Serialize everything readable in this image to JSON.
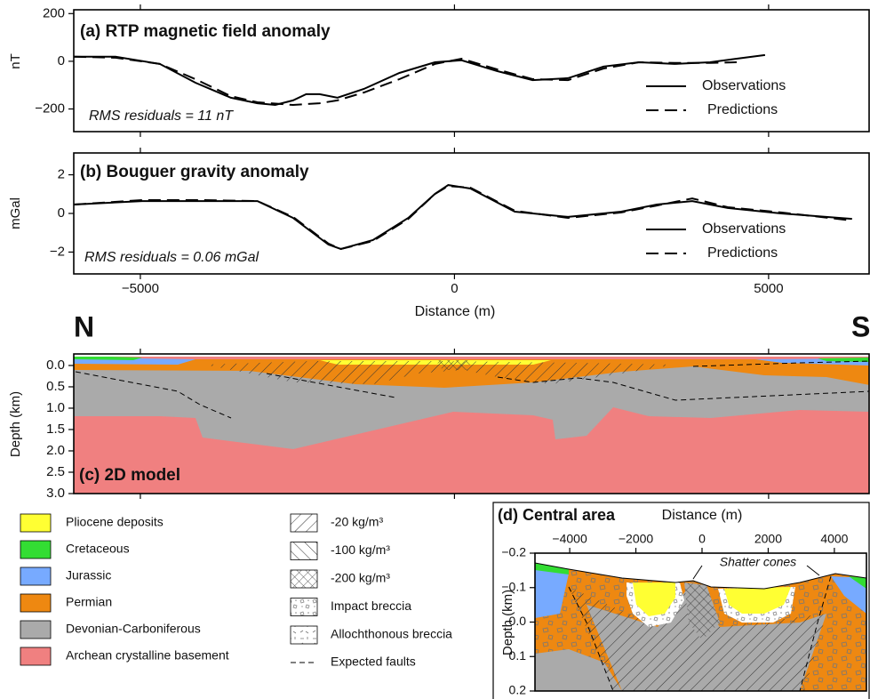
{
  "chart_data": [
    {
      "type": "line",
      "title": "(a) RTP magnetic field anomaly",
      "ylabel": "nT",
      "annotation": "RMS residuals = 11 nT",
      "xlim": [
        -6060,
        6600
      ],
      "ylim": [
        -295,
        216
      ],
      "yticks": [
        200,
        0,
        {
          "value": -200,
          "label": "−200"
        }
      ],
      "series": [
        {
          "name": "Observations",
          "color": "#000",
          "dashed": false,
          "x": [
            -6060,
            -5395,
            -4689,
            -4124,
            -3559,
            -3136,
            -2853,
            -2571,
            -2359,
            -2147,
            -1864,
            -1441,
            -876,
            -311,
            113,
            678,
            1243,
            1808,
            2373,
            2938,
            3503,
            4068,
            4492,
            4944
          ],
          "values": [
            19,
            19,
            -11,
            -90,
            -153,
            -176,
            -183,
            -164,
            -138,
            -138,
            -153,
            -116,
            -49,
            -4,
            4,
            -41,
            -79,
            -71,
            -22,
            -4,
            -11,
            -4,
            11,
            26
          ]
        },
        {
          "name": "Predictions",
          "color": "#000",
          "dashed": true,
          "x": [
            -6060,
            -5395,
            -4689,
            -4124,
            -3559,
            -3136,
            -2571,
            -2147,
            -1864,
            -1441,
            -876,
            -311,
            113,
            678,
            1243,
            1808,
            2373,
            2938,
            3503,
            4068,
            4492
          ],
          "values": [
            19,
            15,
            -11,
            -75,
            -146,
            -172,
            -183,
            -176,
            -164,
            -131,
            -75,
            -11,
            11,
            -34,
            -75,
            -79,
            -30,
            -4,
            -7,
            -7,
            -4
          ]
        }
      ]
    },
    {
      "type": "line",
      "title": "(b) Bouguer gravity anomaly",
      "ylabel": "mGal",
      "xlabel": "Distance (m)",
      "annotation": "RMS residuals = 0.06 mGal",
      "xlim": [
        -6060,
        6600
      ],
      "ylim": [
        -3.13,
        3.13
      ],
      "xticks": [
        {
          "value": -5000,
          "label": "−5000"
        },
        0,
        5000
      ],
      "yticks": [
        2,
        0,
        {
          "value": -2,
          "label": "−2"
        }
      ],
      "series": [
        {
          "name": "Observations",
          "color": "#000",
          "dashed": false,
          "x": [
            -6060,
            -4972,
            -3983,
            -3136,
            -2571,
            -2006,
            -1808,
            -1299,
            -734,
            -311,
            -99,
            254,
            960,
            1808,
            2655,
            3220,
            3785,
            4350,
            5198,
            6328
          ],
          "values": [
            0.46,
            0.64,
            0.64,
            0.64,
            -0.23,
            -1.61,
            -1.84,
            -1.38,
            -0.23,
            1.01,
            1.47,
            1.29,
            0.09,
            -0.18,
            0.09,
            0.46,
            0.64,
            0.28,
            0,
            -0.28
          ]
        },
        {
          "name": "Predictions",
          "color": "#000",
          "dashed": true,
          "x": [
            -6060,
            -4972,
            -3983,
            -3136,
            -2571,
            -2006,
            -1808,
            -1299,
            -734,
            -311,
            -99,
            254,
            960,
            1808,
            2655,
            3220,
            3785,
            4350,
            5198,
            6328
          ],
          "values": [
            0.46,
            0.69,
            0.69,
            0.64,
            -0.18,
            -1.56,
            -1.84,
            -1.43,
            -0.28,
            1.01,
            1.42,
            1.33,
            0.14,
            -0.23,
            0.05,
            0.41,
            0.78,
            0.32,
            0.05,
            -0.37
          ]
        }
      ]
    },
    {
      "type": "section",
      "title": "(c) 2D model",
      "ylabel": "Depth (km)",
      "left_label": "N",
      "right_label": "S",
      "xlim": [
        -6060,
        6600
      ],
      "ylim": [
        -0.27,
        3.0
      ],
      "y_inverted": true,
      "yticks": [
        {
          "value": 0,
          "label": "0.0"
        },
        0.5,
        {
          "value": 1,
          "label": "1.0"
        },
        1.5,
        {
          "value": 2,
          "label": "2.0"
        },
        2.5,
        {
          "value": 3,
          "label": "3.0"
        }
      ],
      "units": [
        {
          "name": "Pliocene deposits",
          "color": "#ffff33"
        },
        {
          "name": "Cretaceous",
          "color": "#33dd33"
        },
        {
          "name": "Jurassic",
          "color": "#77aaff"
        },
        {
          "name": "Permian",
          "color": "#ee8811"
        },
        {
          "name": "Devonian-Carboniferous",
          "color": "#aaaaaa"
        },
        {
          "name": "Archean crystalline basement",
          "color": "#f08080"
        }
      ],
      "fills": [
        "-20 kg/m³",
        "-100 kg/m³",
        "-200 kg/m³",
        "Impact breccia",
        "Allochthonous breccia"
      ],
      "faults": "Expected faults"
    },
    {
      "type": "section",
      "title": "(d) Central area",
      "xlabel": "Distance (m)",
      "ylabel": "Depth (km)",
      "annotation": "Shatter cones",
      "xlim": [
        -5050,
        4970
      ],
      "ylim": [
        -0.2,
        0.2
      ],
      "y_inverted": true,
      "xaxis_position": "top",
      "xticks": [
        {
          "value": -4000,
          "label": "−4000"
        },
        {
          "value": -2000,
          "label": "−2000"
        },
        0,
        2000,
        4000
      ],
      "yticks": [
        {
          "value": -0.2,
          "label": "−0.2"
        },
        {
          "value": -0.1,
          "label": "−0.1"
        },
        {
          "value": 0,
          "label": "0.0"
        },
        0.1,
        0.2
      ]
    }
  ]
}
